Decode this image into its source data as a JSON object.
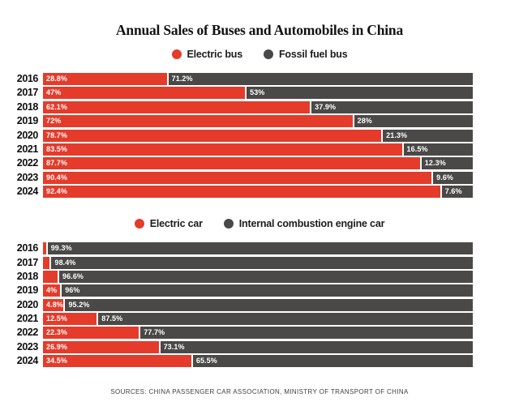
{
  "title": "Annual Sales of Buses and Automobiles in China",
  "footer": "SOURCES: CHINA PASSENGER CAR ASSOCIATION, MINISTRY OF TRANSPORT OF CHINA",
  "colors": {
    "electric_red": "#e43b2b",
    "fossil_dark": "#4a4948"
  },
  "chart_data": [
    {
      "type": "bar",
      "orientation": "horizontal",
      "stacked": true,
      "grid": false,
      "xlim": [
        0,
        100
      ],
      "legend_position": "top-center",
      "legend": [
        {
          "name": "Electric bus",
          "color": "#e43b2b"
        },
        {
          "name": "Fossil fuel bus",
          "color": "#4a4948"
        }
      ],
      "categories": [
        "2016",
        "2017",
        "2018",
        "2019",
        "2020",
        "2021",
        "2022",
        "2023",
        "2024"
      ],
      "series": [
        {
          "name": "Electric bus",
          "color": "#e43b2b",
          "values": [
            28.8,
            47,
            62.1,
            72,
            78.7,
            83.5,
            87.7,
            90.4,
            92.4
          ],
          "labels": [
            "28.8%",
            "47%",
            "62.1%",
            "72%",
            "78.7%",
            "83.5%",
            "87.7%",
            "90.4%",
            "92.4%"
          ]
        },
        {
          "name": "Fossil fuel bus",
          "color": "#4a4948",
          "values": [
            71.2,
            53,
            37.9,
            28,
            21.3,
            16.5,
            12.3,
            9.6,
            7.6
          ],
          "labels": [
            "71.2%",
            "53%",
            "37.9%",
            "28%",
            "21.3%",
            "16.5%",
            "12.3%",
            "9.6%",
            "7.6%"
          ]
        }
      ]
    },
    {
      "type": "bar",
      "orientation": "horizontal",
      "stacked": true,
      "grid": false,
      "xlim": [
        0,
        100
      ],
      "legend_position": "top-center",
      "legend": [
        {
          "name": "Electric car",
          "color": "#e43b2b"
        },
        {
          "name": "Internal combustion engine car",
          "color": "#4a4948"
        }
      ],
      "categories": [
        "2016",
        "2017",
        "2018",
        "2019",
        "2020",
        "2021",
        "2022",
        "2023",
        "2024"
      ],
      "series": [
        {
          "name": "Electric car",
          "color": "#e43b2b",
          "values": [
            0.7,
            1.6,
            3.4,
            4,
            4.8,
            12.5,
            22.3,
            26.9,
            34.5
          ],
          "labels": [
            "",
            "",
            "",
            "4%",
            "4.8%",
            "12.5%",
            "22.3%",
            "26.9%",
            "34.5%"
          ]
        },
        {
          "name": "Internal combustion engine car",
          "color": "#4a4948",
          "values": [
            99.3,
            98.4,
            96.6,
            96,
            95.2,
            87.5,
            77.7,
            73.1,
            65.5
          ],
          "labels": [
            "99.3%",
            "98.4%",
            "96.6%",
            "96%",
            "95.2%",
            "87.5%",
            "77.7%",
            "73.1%",
            "65.5%"
          ]
        }
      ]
    }
  ]
}
